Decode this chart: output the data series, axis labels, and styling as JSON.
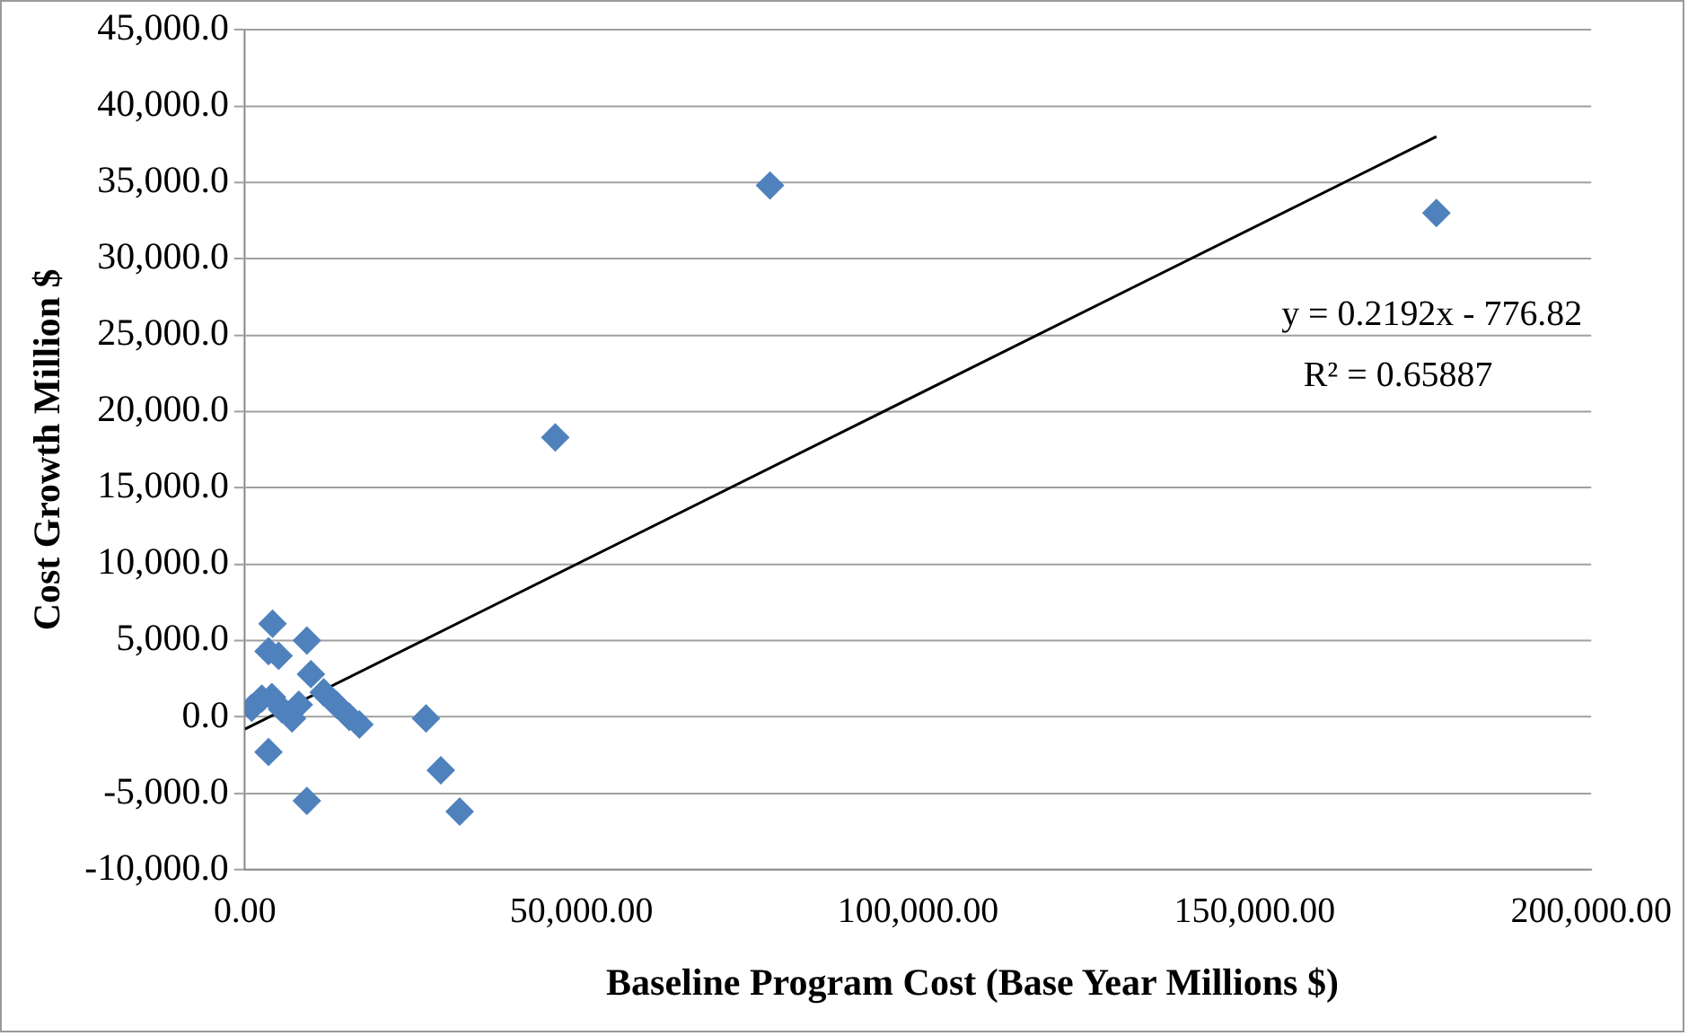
{
  "chart_data": {
    "type": "scatter",
    "xlabel": "Baseline Program Cost (Base Year Millions $)",
    "ylabel": "Cost Growth Million $",
    "xlim": [
      0,
      200000
    ],
    "xticks": [
      {
        "value": 0,
        "label": "0.00"
      },
      {
        "value": 50000,
        "label": "50,000.00"
      },
      {
        "value": 100000,
        "label": "100,000.00"
      },
      {
        "value": 150000,
        "label": "150,000.00"
      },
      {
        "value": 200000,
        "label": "200,000.00"
      }
    ],
    "ylim": [
      -10000,
      45000
    ],
    "yticks": [
      {
        "value": -10000,
        "label": "-10,000.0"
      },
      {
        "value": -5000,
        "label": "-5,000.0"
      },
      {
        "value": 0,
        "label": "0.0"
      },
      {
        "value": 5000,
        "label": "5,000.0"
      },
      {
        "value": 10000,
        "label": "10,000.0"
      },
      {
        "value": 15000,
        "label": "15,000.0"
      },
      {
        "value": 20000,
        "label": "20,000.0"
      },
      {
        "value": 25000,
        "label": "25,000.0"
      },
      {
        "value": 30000,
        "label": "30,000.0"
      },
      {
        "value": 35000,
        "label": "35,000.0"
      },
      {
        "value": 40000,
        "label": "40,000.0"
      },
      {
        "value": 45000,
        "label": "45,000.0"
      }
    ],
    "grid": "y",
    "legend": false,
    "marker": "diamond",
    "annotations": [
      "y = 0.2192x - 776.82",
      "R² = 0.65887"
    ],
    "series": [
      {
        "color": "#4f81bd",
        "x": [
          4100,
          3500,
          5000,
          9200,
          9800,
          11700,
          13600,
          15500,
          17000,
          1000,
          2500,
          4000,
          5500,
          7000,
          8000,
          3500,
          9200,
          26900,
          29100,
          31900,
          46100,
          78000,
          177000
        ],
        "values": [
          6100,
          4300,
          4000,
          5000,
          2800,
          1600,
          800,
          0,
          -500,
          600,
          1200,
          1300,
          500,
          -100,
          800,
          -2300,
          -5500,
          -100,
          -3500,
          -6200,
          18300,
          34800,
          33000
        ]
      },
      {
        "type": "line",
        "color": "#000000",
        "marker": "none",
        "x": [
          0,
          177000
        ],
        "values": [
          -800,
          38000
        ]
      }
    ]
  }
}
